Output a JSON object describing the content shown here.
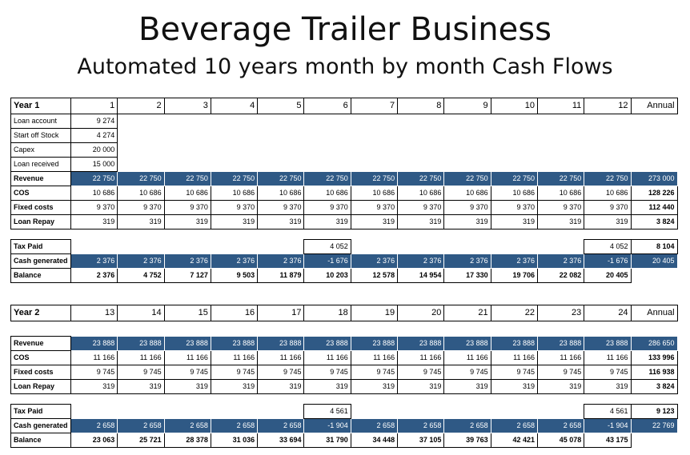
{
  "title": "Beverage Trailer Business",
  "subtitle": "Automated 10 years month by month Cash Flows",
  "years": [
    {
      "label": "Year 1",
      "months": [
        "1",
        "2",
        "3",
        "4",
        "5",
        "6",
        "7",
        "8",
        "9",
        "10",
        "11",
        "12"
      ],
      "annual_label": "Annual",
      "loan_rows": [
        {
          "label": "Loan account",
          "value": "9 274"
        },
        {
          "label": "Start off Stock",
          "value": "4 274"
        },
        {
          "label": "Capex",
          "value": "20 000"
        },
        {
          "label": "Loan received",
          "value": "15 000"
        }
      ],
      "revenue": {
        "label": "Revenue",
        "values": [
          "22 750",
          "22 750",
          "22 750",
          "22 750",
          "22 750",
          "22 750",
          "22 750",
          "22 750",
          "22 750",
          "22 750",
          "22 750",
          "22 750"
        ],
        "annual": "273 000"
      },
      "cos": {
        "label": "COS",
        "values": [
          "10 686",
          "10 686",
          "10 686",
          "10 686",
          "10 686",
          "10 686",
          "10 686",
          "10 686",
          "10 686",
          "10 686",
          "10 686",
          "10 686"
        ],
        "annual": "128 226"
      },
      "fixed": {
        "label": "Fixed costs",
        "values": [
          "9 370",
          "9 370",
          "9 370",
          "9 370",
          "9 370",
          "9 370",
          "9 370",
          "9 370",
          "9 370",
          "9 370",
          "9 370",
          "9 370"
        ],
        "annual": "112 440"
      },
      "loanrepay": {
        "label": "Loan Repay",
        "values": [
          "319",
          "319",
          "319",
          "319",
          "319",
          "319",
          "319",
          "319",
          "319",
          "319",
          "319",
          "319"
        ],
        "annual": "3 824"
      },
      "tax": {
        "label": "Tax Paid",
        "values": [
          "",
          "",
          "",
          "",
          "",
          "4 052",
          "",
          "",
          "",
          "",
          "",
          "4 052"
        ],
        "annual": "8 104"
      },
      "cash": {
        "label": "Cash generated",
        "values": [
          "2 376",
          "2 376",
          "2 376",
          "2 376",
          "2 376",
          "-1 676",
          "2 376",
          "2 376",
          "2 376",
          "2 376",
          "2 376",
          "-1 676"
        ],
        "annual": "20 405"
      },
      "balance": {
        "label": "Balance",
        "values": [
          "2 376",
          "4 752",
          "7 127",
          "9 503",
          "11 879",
          "10 203",
          "12 578",
          "14 954",
          "17 330",
          "19 706",
          "22 082",
          "20 405"
        ]
      }
    },
    {
      "label": "Year 2",
      "months": [
        "13",
        "14",
        "15",
        "16",
        "17",
        "18",
        "19",
        "20",
        "21",
        "22",
        "23",
        "24"
      ],
      "annual_label": "Annual",
      "revenue": {
        "label": "Revenue",
        "values": [
          "23 888",
          "23 888",
          "23 888",
          "23 888",
          "23 888",
          "23 888",
          "23 888",
          "23 888",
          "23 888",
          "23 888",
          "23 888",
          "23 888"
        ],
        "annual": "286 650"
      },
      "cos": {
        "label": "COS",
        "values": [
          "11 166",
          "11 166",
          "11 166",
          "11 166",
          "11 166",
          "11 166",
          "11 166",
          "11 166",
          "11 166",
          "11 166",
          "11 166",
          "11 166"
        ],
        "annual": "133 996"
      },
      "fixed": {
        "label": "Fixed costs",
        "values": [
          "9 745",
          "9 745",
          "9 745",
          "9 745",
          "9 745",
          "9 745",
          "9 745",
          "9 745",
          "9 745",
          "9 745",
          "9 745",
          "9 745"
        ],
        "annual": "116 938"
      },
      "loanrepay": {
        "label": "Loan Repay",
        "values": [
          "319",
          "319",
          "319",
          "319",
          "319",
          "319",
          "319",
          "319",
          "319",
          "319",
          "319",
          "319"
        ],
        "annual": "3 824"
      },
      "tax": {
        "label": "Tax Paid",
        "values": [
          "",
          "",
          "",
          "",
          "",
          "4 561",
          "",
          "",
          "",
          "",
          "",
          "4 561"
        ],
        "annual": "9 123"
      },
      "cash": {
        "label": "Cash generated",
        "values": [
          "2 658",
          "2 658",
          "2 658",
          "2 658",
          "2 658",
          "-1 904",
          "2 658",
          "2 658",
          "2 658",
          "2 658",
          "2 658",
          "-1 904"
        ],
        "annual": "22 769"
      },
      "balance": {
        "label": "Balance",
        "values": [
          "23 063",
          "25 721",
          "28 378",
          "31 036",
          "33 694",
          "31 790",
          "34 448",
          "37 105",
          "39 763",
          "42 421",
          "45 078",
          "43 175"
        ]
      }
    }
  ],
  "colors": {
    "header_band": "#2f5985"
  }
}
